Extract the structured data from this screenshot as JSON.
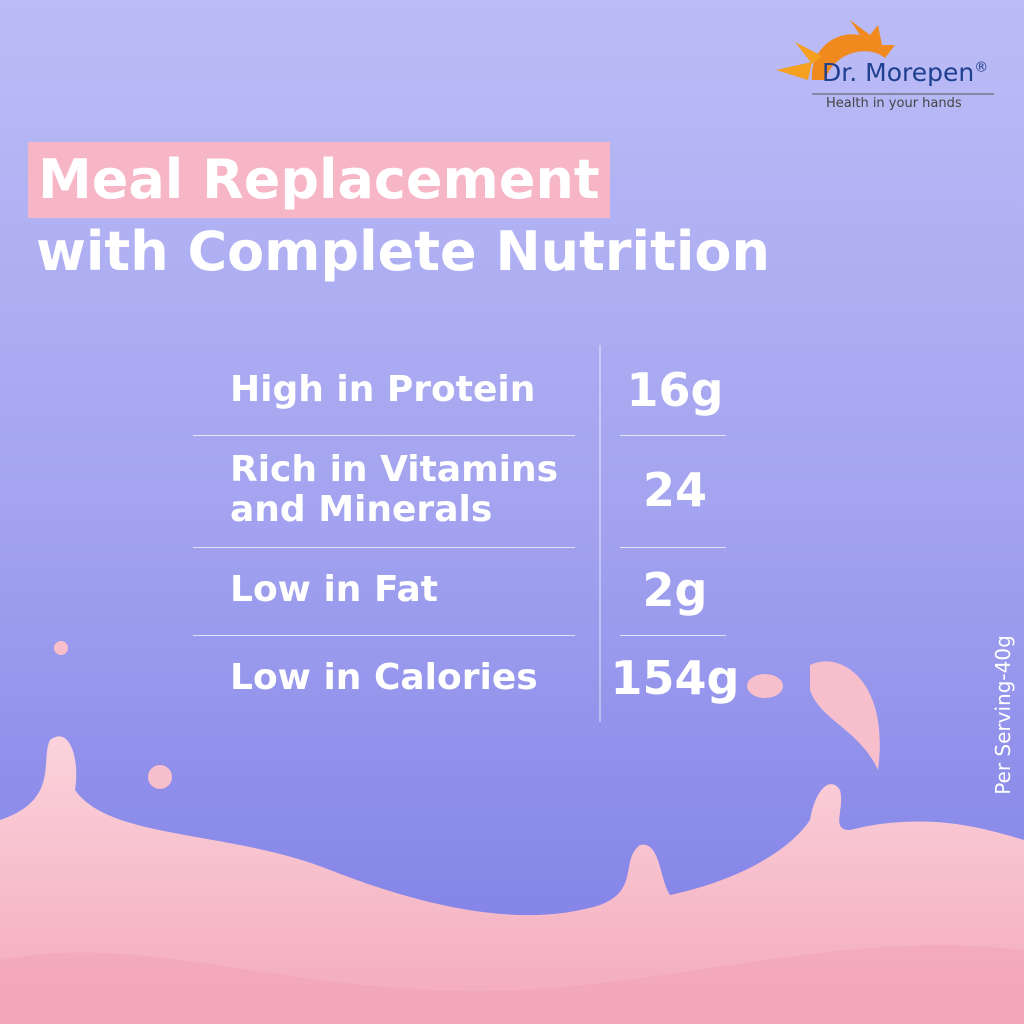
{
  "logo": {
    "brand": "Dr. Morepen",
    "mark": "®",
    "tagline": "Health in your hands"
  },
  "headline": {
    "highlight": "Meal Replacement",
    "line2": "with Complete Nutrition"
  },
  "table": {
    "rows": [
      {
        "label": [
          "High in Protein"
        ],
        "value": "16g"
      },
      {
        "label": [
          "Rich in Vitamins",
          "and Minerals"
        ],
        "value": "24"
      },
      {
        "label": [
          "Low in Fat"
        ],
        "value": "2g"
      },
      {
        "label": [
          "Low in Calories"
        ],
        "value": "154g"
      }
    ]
  },
  "footnote": "Per Serving-40g"
}
